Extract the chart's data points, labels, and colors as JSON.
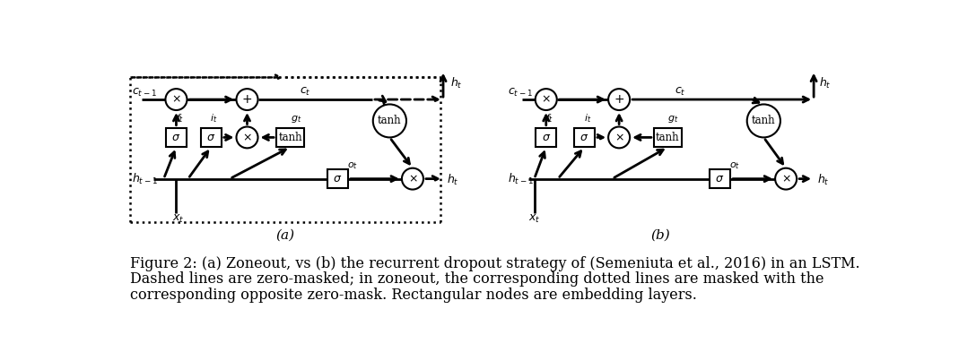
{
  "caption_line1": "Figure 2: (a) Zoneout, vs (b) the recurrent dropout strategy of (Semeniuta et al., 2016) in an LSTM.",
  "caption_line2": "Dashed lines are zero-masked; in zoneout, the corresponding dotted lines are masked with the",
  "caption_line3": "corresponding opposite zero-mask. Rectangular nodes are embedding layers.",
  "label_a": "(a)",
  "label_b": "(b)",
  "bg_color": "#ffffff",
  "text_color": "#000000",
  "font_size_caption": 11.5
}
